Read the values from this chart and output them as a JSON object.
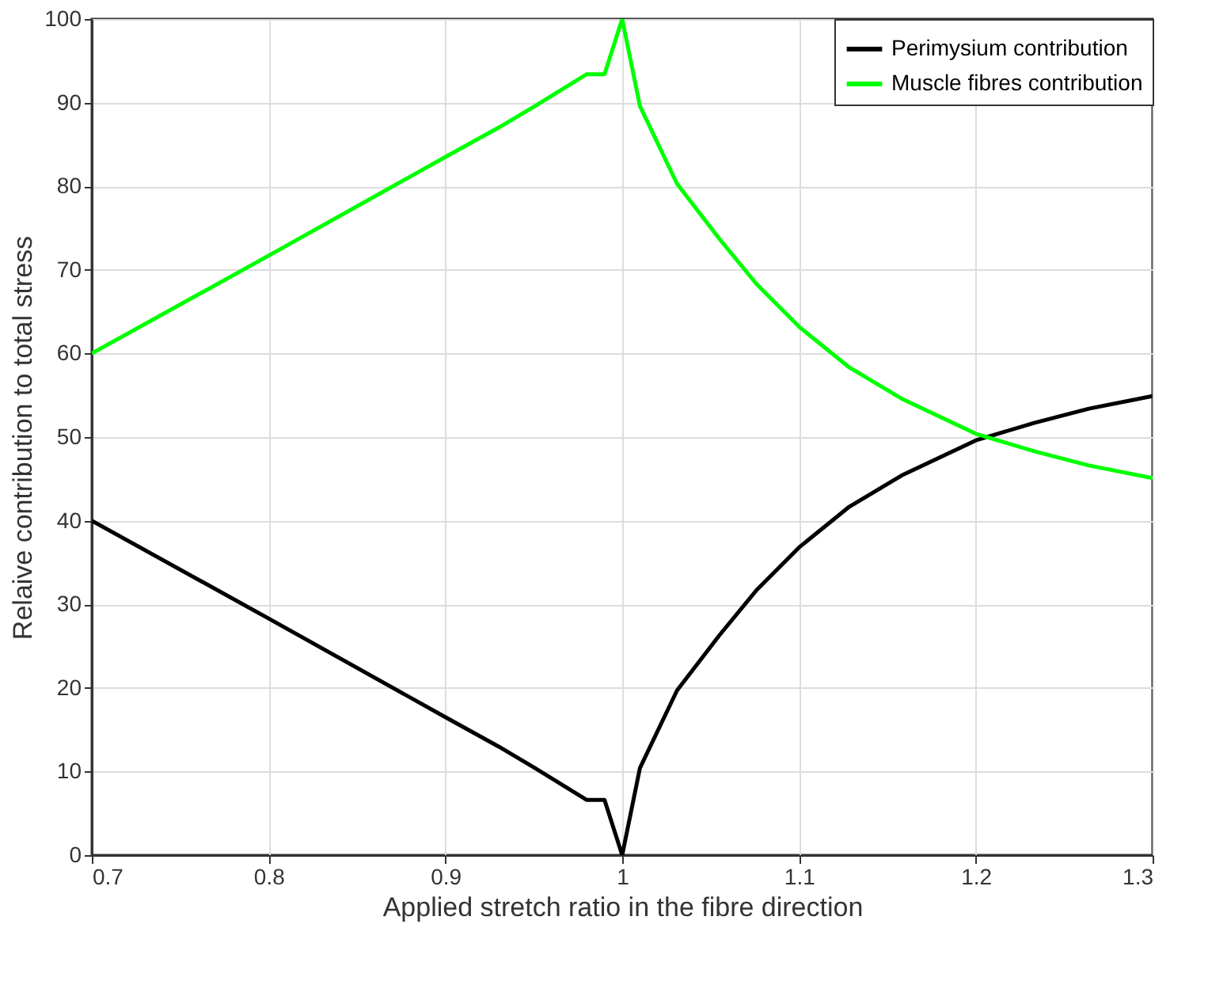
{
  "chart_data": {
    "type": "line",
    "xlabel": "Applied stretch ratio in the fibre direction",
    "ylabel": "Relaive contribution to total stress",
    "x": [
      0.7,
      0.8,
      0.9,
      0.93,
      0.95,
      0.98,
      0.99,
      1.0,
      1.01,
      1.031,
      1.055,
      1.076,
      1.1,
      1.128,
      1.158,
      1.2,
      1.233,
      1.264,
      1.3
    ],
    "series": [
      {
        "name": "Perimysium contribution",
        "color": "#000000",
        "values": [
          40,
          28.3,
          16.5,
          13,
          10.5,
          6.6,
          6.6,
          0,
          10.4,
          19.7,
          26.3,
          31.7,
          36.8,
          41.6,
          45.4,
          49.6,
          51.7,
          53.4,
          54.9
        ]
      },
      {
        "name": "Muscle fibres contribution",
        "color": "#00ff00",
        "values": [
          60,
          71.7,
          83.5,
          87,
          89.5,
          93.4,
          93.4,
          100,
          89.6,
          80.3,
          73.7,
          68.3,
          63.2,
          58.4,
          54.6,
          50.4,
          48.3,
          46.6,
          45.1
        ]
      }
    ],
    "xlim": [
      0.7,
      1.3
    ],
    "xticks": [
      0.7,
      0.8,
      0.9,
      1,
      1.1,
      1.2,
      1.3
    ],
    "ylim": [
      0,
      100
    ],
    "yticks": [
      0,
      10,
      20,
      30,
      40,
      50,
      60,
      70,
      80,
      90,
      100
    ],
    "grid": true,
    "legend": "top right",
    "line_style": "solid",
    "marker": "none"
  }
}
